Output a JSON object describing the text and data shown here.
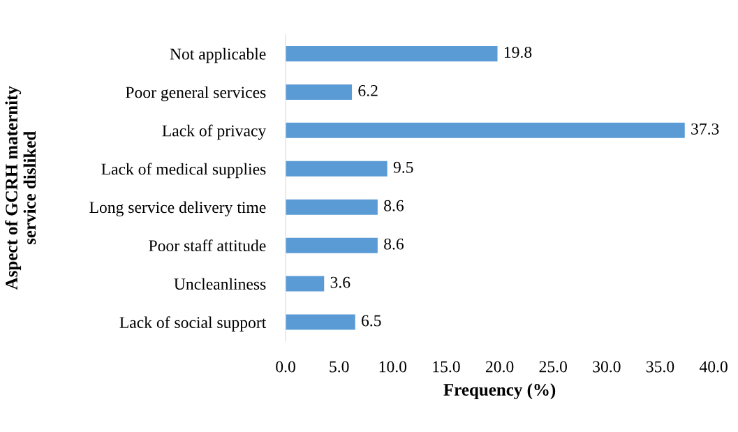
{
  "chart_data": {
    "type": "bar",
    "orientation": "horizontal",
    "xlabel": "Frequency (%)",
    "ylabel": "Aspect of GCRH maternity\nservice disliked",
    "categories": [
      "Not applicable",
      "Poor general services",
      "Lack of privacy",
      "Lack of medical supplies",
      "Long service delivery time",
      "Poor staff attitude",
      "Uncleanliness",
      "Lack of social support"
    ],
    "values": [
      19.8,
      6.2,
      37.3,
      9.5,
      8.6,
      8.6,
      3.6,
      6.5
    ],
    "color": "#5b9bd5",
    "data_labels": true,
    "grid": false,
    "legend": false,
    "xlim": [
      0,
      40
    ],
    "xticks": [
      {
        "value": 0,
        "label": "0.0"
      },
      {
        "value": 5,
        "label": "5.0"
      },
      {
        "value": 10,
        "label": "10.0"
      },
      {
        "value": 15,
        "label": "15.0"
      },
      {
        "value": 20,
        "label": "20.0"
      },
      {
        "value": 25,
        "label": "25.0"
      },
      {
        "value": 30,
        "label": "30.0"
      },
      {
        "value": 35,
        "label": "35.0"
      },
      {
        "value": 40,
        "label": "40.0"
      }
    ]
  }
}
